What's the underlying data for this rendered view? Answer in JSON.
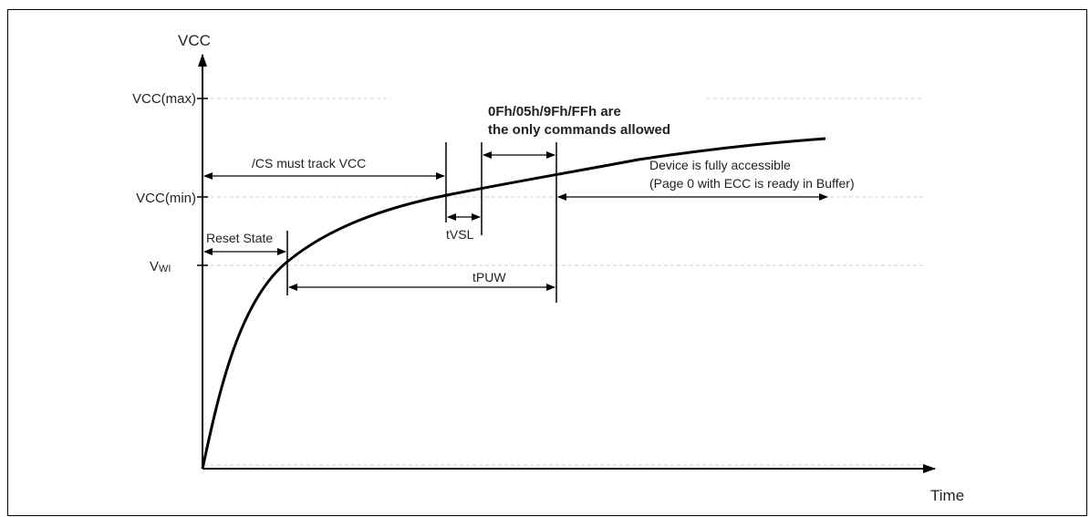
{
  "diagram": {
    "y_axis_label": "VCC",
    "x_axis_label": "Time",
    "levels": {
      "vcc_max": "VCC(max)",
      "vcc_min": "VCC(min)",
      "vwi_main": "V",
      "vwi_sub": "WI"
    },
    "annotations": {
      "cs_track": "/CS must track VCC",
      "reset_state": "Reset State",
      "tvsl": "tVSL",
      "tpuw": "tPUW",
      "commands_line1": "0Fh/05h/9Fh/FFh are",
      "commands_line2": "the only commands allowed",
      "accessible_line1": "Device is fully accessible",
      "accessible_line2": "(Page 0 with ECC is ready in Buffer)"
    },
    "colors": {
      "line": "#000000",
      "guide": "#cfcfcf",
      "text": "#222222"
    }
  }
}
